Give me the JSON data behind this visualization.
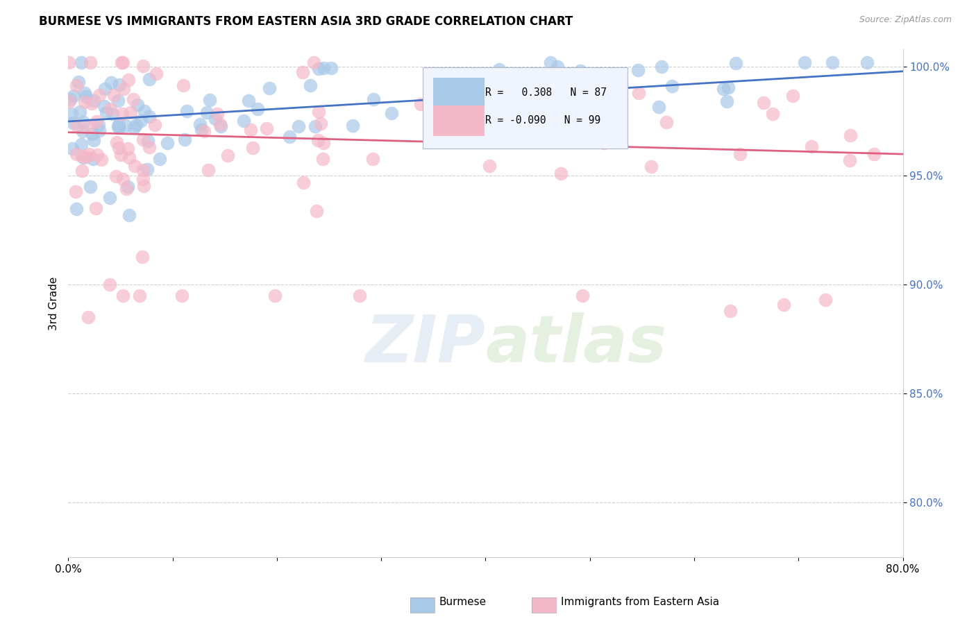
{
  "title": "BURMESE VS IMMIGRANTS FROM EASTERN ASIA 3RD GRADE CORRELATION CHART",
  "source": "Source: ZipAtlas.com",
  "ylabel": "3rd Grade",
  "watermark": "ZIPatlas",
  "burmese_R": 0.308,
  "burmese_N": 87,
  "eastern_asia_R": -0.09,
  "eastern_asia_N": 99,
  "burmese_color": "#a8c8e8",
  "eastern_asia_color": "#f4b8c8",
  "burmese_line_color": "#4472c4",
  "eastern_asia_line_color": "#e06080",
  "right_axis_ticks": [
    80.0,
    85.0,
    90.0,
    95.0,
    100.0
  ],
  "x_min": 0.0,
  "x_max": 0.8,
  "y_min": 0.775,
  "y_max": 1.008,
  "legend_box_color": "#e8eef8",
  "legend_box_border": "#c0c8d8",
  "grid_color": "#d0d0d0",
  "background": "#ffffff"
}
